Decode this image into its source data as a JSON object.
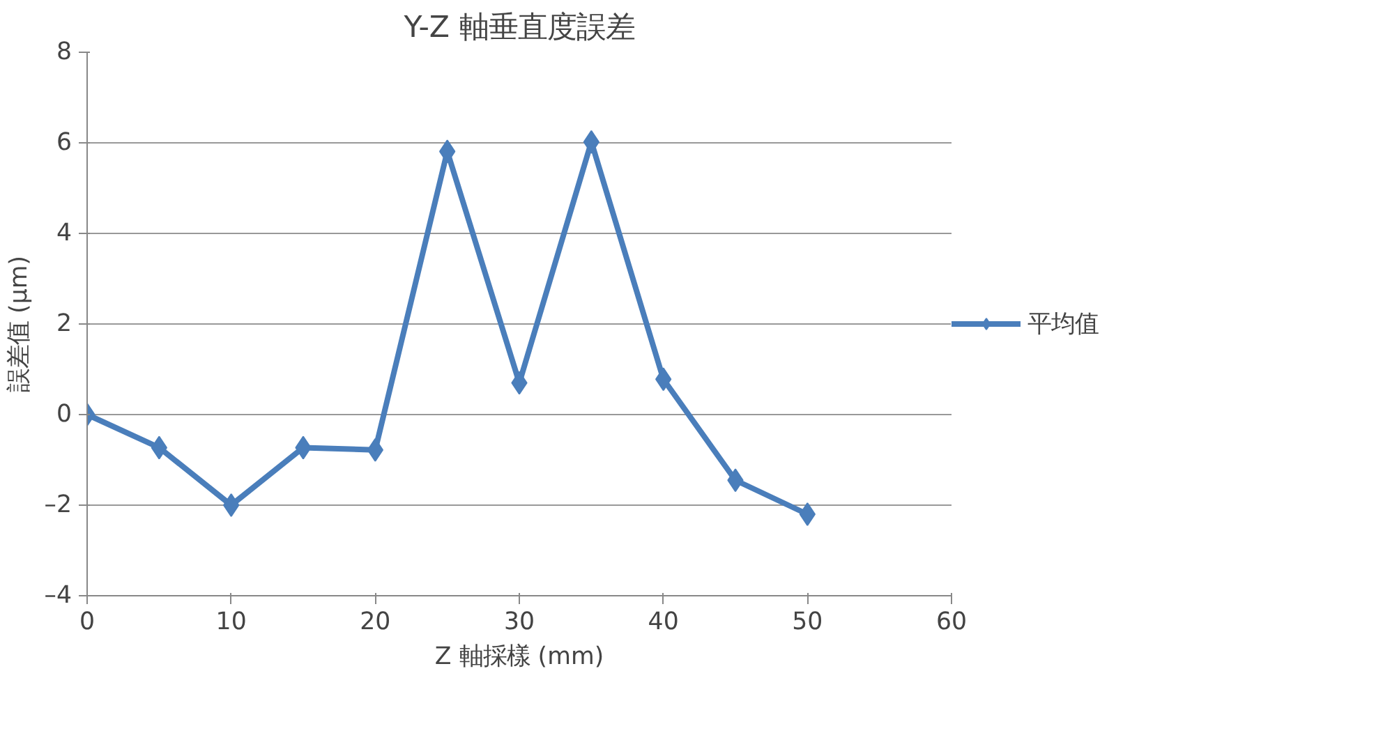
{
  "chart_data": {
    "type": "line",
    "title": "Y-Z 軸垂直度誤差",
    "xlabel": "Z 軸採樣 (mm)",
    "ylabel": "誤差值 (μm)",
    "x": [
      0,
      5,
      10,
      15,
      20,
      25,
      30,
      35,
      40,
      45,
      50
    ],
    "series": [
      {
        "name": "平均值",
        "color": "#4a7ebb",
        "values": [
          0,
          -0.73,
          -2.0,
          -0.73,
          -0.78,
          5.81,
          0.7,
          6.02,
          0.78,
          -1.45,
          -2.2
        ]
      }
    ],
    "xlim": [
      0,
      60
    ],
    "xticks": [
      0,
      10,
      20,
      30,
      40,
      50,
      60
    ],
    "ylim": [
      -4,
      8
    ],
    "yticks": [
      {
        "value": -4,
        "label": "–4"
      },
      {
        "value": -2,
        "label": "–2"
      },
      0,
      2,
      4,
      6,
      8
    ],
    "grid": "y",
    "legend": "right",
    "marker": "diamond",
    "line_style": "solid"
  }
}
